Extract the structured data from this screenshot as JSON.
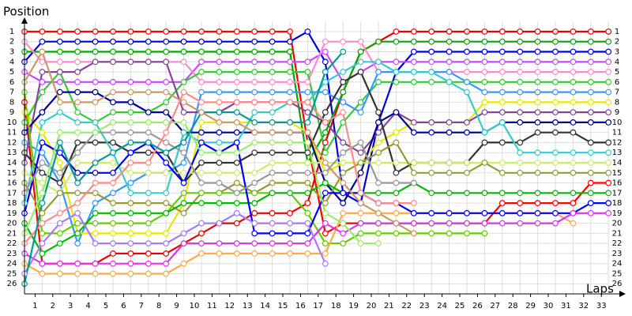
{
  "chart_data": {
    "type": "line",
    "title_y": "Position",
    "title_x": "Laps",
    "x": [
      0,
      1,
      2,
      3,
      4,
      5,
      6,
      7,
      8,
      9,
      10,
      11,
      12,
      13,
      14,
      15,
      16,
      17,
      18,
      19,
      20,
      21,
      22,
      23,
      24,
      25,
      26,
      27,
      28,
      29,
      30,
      31,
      32,
      33
    ],
    "xlim": [
      0,
      34
    ],
    "xticks": [
      1,
      2,
      3,
      4,
      5,
      6,
      7,
      8,
      9,
      10,
      11,
      12,
      13,
      14,
      15,
      16,
      17,
      18,
      19,
      20,
      21,
      22,
      23,
      24,
      25,
      26,
      27,
      28,
      29,
      30,
      31,
      32,
      33
    ],
    "ylim": [
      0,
      27
    ],
    "y_inverted": true,
    "yticks": [
      1,
      2,
      3,
      4,
      5,
      6,
      7,
      8,
      9,
      10,
      11,
      12,
      13,
      14,
      15,
      16,
      17,
      18,
      19,
      20,
      21,
      22,
      23,
      24,
      25,
      26
    ],
    "grid": true,
    "series": [
      {
        "color": "#ff0000",
        "values": [
          1,
          1,
          1,
          1,
          1,
          1,
          1,
          1,
          1,
          1,
          1,
          1,
          1,
          1,
          1,
          1,
          12,
          21,
          20,
          20,
          20,
          20,
          20,
          20,
          20,
          20,
          20,
          18,
          18,
          18,
          18,
          18,
          16,
          16
        ]
      },
      {
        "color": "#ee0000",
        "values": [
          8,
          24,
          24,
          24,
          24,
          23,
          23,
          23,
          23,
          22,
          21,
          20,
          20,
          19,
          19,
          19,
          18,
          12,
          7,
          3,
          2,
          1,
          1,
          1,
          1,
          1,
          1,
          1,
          1,
          1,
          1,
          1,
          1,
          1
        ]
      },
      {
        "color": "#0000dd",
        "values": [
          4,
          2,
          2,
          2,
          2,
          2,
          2,
          2,
          2,
          2,
          2,
          2,
          2,
          2,
          2,
          2,
          1,
          4,
          17,
          18,
          10,
          5,
          3,
          3,
          3,
          3,
          3,
          3,
          3,
          3,
          3,
          3,
          3,
          3
        ]
      },
      {
        "color": "#00aa00",
        "values": [
          3,
          3,
          3,
          3,
          3,
          3,
          3,
          3,
          3,
          3,
          3,
          3,
          3,
          3,
          3,
          3,
          14,
          11,
          7,
          3,
          2,
          2,
          2,
          2,
          2,
          2,
          2,
          2,
          2,
          2,
          2,
          2,
          2,
          2
        ]
      },
      {
        "color": "#cc44ff",
        "values": [
          5,
          6,
          6,
          6,
          6,
          6,
          6,
          6,
          6,
          6,
          4,
          4,
          4,
          4,
          4,
          4,
          4,
          3,
          6,
          5,
          4,
          4,
          4,
          4,
          4,
          4,
          4,
          4,
          4,
          4,
          4,
          4,
          4,
          4
        ]
      },
      {
        "color": "#ff88cc",
        "values": [
          2,
          4,
          4,
          4,
          4,
          4,
          4,
          4,
          4,
          4,
          6,
          6,
          6,
          6,
          6,
          6,
          6,
          2,
          2,
          2,
          5,
          5,
          5,
          5,
          5,
          5,
          5,
          5,
          5,
          5,
          5,
          5,
          5,
          5
        ]
      },
      {
        "color": "#33cc33",
        "values": [
          10,
          7,
          5,
          9,
          10,
          9,
          9,
          9,
          8,
          6,
          5,
          5,
          5,
          5,
          5,
          5,
          5,
          13,
          10,
          8,
          6,
          6,
          6,
          6,
          6,
          6,
          6,
          6,
          6,
          6,
          6,
          6,
          6,
          6
        ]
      },
      {
        "color": "#3399ff",
        "values": [
          12,
          13,
          16,
          22,
          18,
          17,
          16,
          15,
          15,
          14,
          7,
          7,
          7,
          7,
          7,
          7,
          7,
          7,
          8,
          9,
          5,
          5,
          5,
          5,
          5,
          6,
          7,
          7,
          7,
          7,
          7,
          7,
          7,
          7
        ]
      },
      {
        "color": "#e8e800",
        "values": [
          9,
          11,
          14,
          21,
          21,
          21,
          21,
          21,
          21,
          18,
          10,
          10,
          10,
          10,
          10,
          10,
          11,
          15,
          14,
          14,
          12,
          11,
          10,
          10,
          10,
          10,
          8,
          8,
          8,
          8,
          8,
          8,
          8,
          8
        ]
      },
      {
        "color": "#884499",
        "values": [
          14,
          5,
          5,
          5,
          4,
          4,
          4,
          4,
          4,
          9,
          9,
          9,
          8,
          8,
          8,
          8,
          9,
          10,
          12,
          13,
          11,
          9,
          10,
          10,
          10,
          10,
          9,
          9,
          9,
          9,
          9,
          9,
          9,
          9
        ]
      },
      {
        "color": "#000099",
        "values": [
          11,
          9,
          7,
          7,
          7,
          8,
          8,
          9,
          9,
          11,
          11,
          11,
          11,
          11,
          11,
          11,
          11,
          16,
          18,
          15,
          10,
          9,
          11,
          11,
          11,
          11,
          11,
          10,
          10,
          10,
          10,
          10,
          10,
          10
        ]
      },
      {
        "color": "#333333",
        "values": [
          13,
          15,
          16,
          12,
          12,
          12,
          13,
          13,
          13,
          16,
          14,
          14,
          14,
          13,
          13,
          13,
          13,
          9,
          6,
          5,
          9,
          15,
          14,
          14,
          14,
          14,
          12,
          12,
          12,
          11,
          11,
          11,
          12,
          12
        ]
      },
      {
        "color": "#33cccc",
        "values": [
          18,
          10,
          9,
          10,
          10,
          13,
          17,
          17,
          17,
          11,
          12,
          12,
          12,
          9,
          9,
          8,
          8,
          6,
          5,
          4,
          4,
          5,
          5,
          5,
          6,
          7,
          11,
          10,
          13,
          13,
          13,
          13,
          13,
          13
        ]
      },
      {
        "color": "#ccee66",
        "values": [
          15,
          16,
          17,
          14,
          14,
          14,
          15,
          15,
          15,
          15,
          15,
          15,
          15,
          15,
          14,
          14,
          14,
          14,
          14,
          14,
          14,
          14,
          14,
          14,
          14,
          14,
          14,
          14,
          14,
          14,
          14,
          14,
          14,
          14
        ]
      },
      {
        "color": "#999933",
        "values": [
          16,
          19,
          17,
          17,
          17,
          18,
          18,
          18,
          18,
          19,
          17,
          17,
          16,
          17,
          16,
          16,
          16,
          18,
          15,
          14,
          13,
          12,
          15,
          15,
          15,
          15,
          14,
          15,
          15,
          15,
          15,
          15,
          15,
          15
        ]
      },
      {
        "color": "#66cc00",
        "values": [
          7,
          21,
          21,
          20,
          20,
          20,
          20,
          20,
          19,
          17,
          17,
          17,
          17,
          17,
          17,
          17,
          19,
          22,
          22,
          21,
          21,
          21,
          21,
          21,
          21,
          21,
          21,
          null,
          null,
          null,
          null,
          null,
          null,
          null
        ]
      },
      {
        "color": "#ffaa44",
        "values": [
          24,
          25,
          25,
          25,
          25,
          25,
          25,
          25,
          25,
          24,
          23,
          23,
          23,
          23,
          23,
          23,
          23,
          23,
          19,
          19,
          19,
          19,
          19,
          19,
          19,
          19,
          19,
          19,
          19,
          19,
          19,
          20,
          null,
          null
        ]
      },
      {
        "color": "#00bb00",
        "values": [
          20,
          23,
          22,
          21,
          19,
          19,
          19,
          19,
          19,
          18,
          18,
          18,
          18,
          18,
          17,
          17,
          17,
          16,
          17,
          17,
          17,
          17,
          16,
          17,
          17,
          17,
          17,
          17,
          17,
          17,
          17,
          17,
          17,
          17
        ]
      },
      {
        "color": "#0000ff",
        "values": [
          19,
          12,
          13,
          15,
          15,
          15,
          13,
          12,
          14,
          16,
          12,
          13,
          12,
          21,
          21,
          21,
          21,
          17,
          17,
          17,
          18,
          18,
          19,
          19,
          19,
          19,
          19,
          19,
          19,
          19,
          19,
          19,
          18,
          18
        ]
      },
      {
        "color": "#dd33ee",
        "values": [
          23,
          24,
          24,
          24,
          24,
          24,
          24,
          24,
          24,
          22,
          22,
          22,
          22,
          22,
          22,
          22,
          22,
          20,
          21,
          20,
          20,
          20,
          20,
          20,
          20,
          20,
          20,
          20,
          20,
          20,
          20,
          19,
          19,
          19
        ]
      },
      {
        "color": "#999999",
        "values": [
          17,
          14,
          15,
          13,
          11,
          11,
          11,
          11,
          12,
          13,
          16,
          16,
          17,
          16,
          15,
          15,
          15,
          15,
          13,
          12,
          16,
          16,
          16,
          null,
          null,
          null,
          null,
          null,
          null,
          null,
          null,
          null,
          null,
          null
        ]
      },
      {
        "color": "#99ee66",
        "values": [
          21,
          17,
          11,
          11,
          11,
          10,
          10,
          10,
          10,
          10,
          13,
          13,
          13,
          12,
          12,
          12,
          12,
          19,
          20,
          22,
          22,
          null,
          null,
          null,
          null,
          null,
          null,
          null,
          null,
          null,
          null,
          null,
          null,
          null
        ]
      },
      {
        "color": "#ff8888",
        "values": [
          22,
          20,
          19,
          18,
          16,
          16,
          14,
          14,
          11,
          7,
          8,
          8,
          8,
          8,
          8,
          8,
          8,
          10,
          9,
          17,
          18,
          18,
          18,
          null,
          null,
          null,
          null,
          null,
          null,
          null,
          null,
          null,
          null,
          null
        ]
      },
      {
        "color": "#aa77ff",
        "values": [
          25,
          22,
          20,
          19,
          22,
          22,
          22,
          22,
          22,
          21,
          20,
          20,
          19,
          20,
          20,
          20,
          20,
          24,
          null,
          null,
          null,
          null,
          null,
          null,
          null,
          null,
          null,
          null,
          null,
          null,
          null,
          null,
          null,
          null
        ]
      },
      {
        "color": "#009999",
        "values": [
          26,
          18,
          12,
          16,
          14,
          13,
          12,
          12,
          13,
          12,
          9,
          9,
          9,
          10,
          10,
          10,
          10,
          5,
          3,
          null,
          null,
          null,
          null,
          null,
          null,
          null,
          null,
          null,
          null,
          null,
          null,
          null,
          null,
          null
        ]
      },
      {
        "color": "#cc9966",
        "values": [
          6,
          3,
          8,
          8,
          8,
          7,
          7,
          7,
          7,
          8,
          9,
          10,
          10,
          11,
          11,
          11,
          11,
          14,
          16,
          18,
          19,
          20,
          21,
          null,
          null,
          null,
          null,
          null,
          null,
          null,
          null,
          null,
          null,
          null
        ]
      }
    ]
  }
}
